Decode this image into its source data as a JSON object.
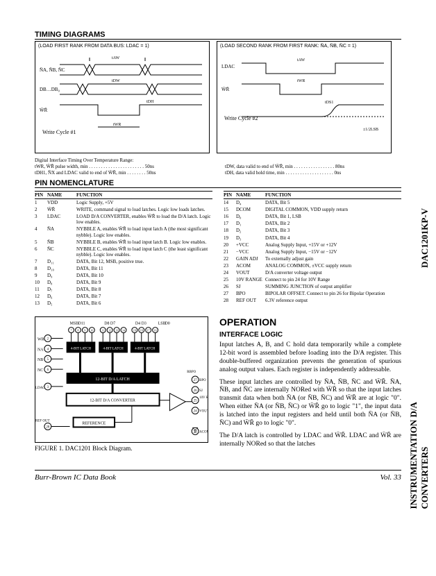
{
  "side_label_upper": "DAC1201KP-V",
  "side_label_lower": "INSTRUMENTATION D/A CONVERTERS",
  "timing": {
    "heading": "TIMING DIAGRAMS",
    "left_caption": "(LOAD FIRST RANK FROM DATA BUS: LDAC = 1)",
    "right_caption": "(LOAD SECOND RANK FROM FIRST RANK: N̄A, N̄B, N̄C = 1)",
    "left_cycle": "Write Cycle #1",
    "right_cycle": "Write Cycle #2",
    "zlsb": "±1/2LSB",
    "notes_title": "Digital Interface Timing Over Temperature Range:",
    "left_notes": [
      "tWR, W̄R̄ pulse width, min . . . . . . . . . . . . . . . . . . . . . . . 50ns",
      "tDH1, N̄X and LDAC valid to end of W̄R̄, min . . . . . . . . 50ns"
    ],
    "right_notes": [
      "tDW, data valid to end of W̄R̄, min . . . . . . . . . . . . . . . . . 80ns",
      "tDH, data valid hold time, min . . . . . . . . . . . . . . . . . . . . 0ns"
    ],
    "sig_left": [
      "N̄A, N̄B, N̄C",
      "DB…DB₀",
      "W̄R̄"
    ],
    "sig_right": [
      "LDAC",
      "W̄R̄"
    ]
  },
  "pin_heading": "PIN NOMENCLATURE",
  "pin_headers": [
    "PIN",
    "NAME",
    "FUNCTION"
  ],
  "pins_left": [
    {
      "n": "1",
      "name": "VDD",
      "fn": "Logic Supply, +5V"
    },
    {
      "n": "2",
      "name": "W̄R̄",
      "fn": "WRITE, command signal to load latches. Logic low loads latches."
    },
    {
      "n": "3",
      "name": "LDAC",
      "fn": "LOAD D/A CONVERTER, enables W̄R̄ to load the D/A latch. Logic low enables."
    },
    {
      "n": "4",
      "name": "N̄A",
      "fn": "NYBBLE A, enables W̄R̄ to load input latch A (the most significant nybble). Logic low enables."
    },
    {
      "n": "5",
      "name": "N̄B",
      "fn": "NYBBLE B, enables W̄R̄ to load input latch B. Logic low enables."
    },
    {
      "n": "6",
      "name": "N̄C",
      "fn": "NYBBLE C, enables W̄R̄ to load input latch C (the least significant nybble). Logic low enables."
    },
    {
      "n": "7",
      "name": "D₁₁",
      "fn": "DATA, Bit 12, MSB, positive true."
    },
    {
      "n": "8",
      "name": "D₁₀",
      "fn": "DATA, Bit 11"
    },
    {
      "n": "9",
      "name": "D₉",
      "fn": "DATA, Bit 10"
    },
    {
      "n": "10",
      "name": "D₈",
      "fn": "DATA, Bit 9"
    },
    {
      "n": "11",
      "name": "D₇",
      "fn": "DATA, Bit 8"
    },
    {
      "n": "12",
      "name": "D₆",
      "fn": "DATA, Bit 7"
    },
    {
      "n": "13",
      "name": "D₅",
      "fn": "DATA, Bit 6"
    }
  ],
  "pins_right": [
    {
      "n": "14",
      "name": "D₄",
      "fn": "DATA, Bit 5"
    },
    {
      "n": "15",
      "name": "DCOM",
      "fn": "DIGITAL COMMON, VDD supply return"
    },
    {
      "n": "16",
      "name": "D₀",
      "fn": "DATA, Bit 1, LSB"
    },
    {
      "n": "17",
      "name": "D₁",
      "fn": "DATA, Bit 2"
    },
    {
      "n": "18",
      "name": "D₂",
      "fn": "DATA, Bit 3"
    },
    {
      "n": "19",
      "name": "D₃",
      "fn": "DATA, Bit 4"
    },
    {
      "n": "20",
      "name": "+VCC",
      "fn": "Analog Supply Input, +15V or +12V"
    },
    {
      "n": "21",
      "name": "−VCC",
      "fn": "Analog Supply Input, −15V or −12V"
    },
    {
      "n": "22",
      "name": "GAIN ADJ",
      "fn": "To externally adjust gain"
    },
    {
      "n": "23",
      "name": "ACOM",
      "fn": "ANALOG COMMON, ±VCC supply return"
    },
    {
      "n": "24",
      "name": "VOUT",
      "fn": "D/A converter voltage output"
    },
    {
      "n": "25",
      "name": "10V RANGE",
      "fn": "Connect to pin 24 for 10V Range"
    },
    {
      "n": "26",
      "name": "SJ",
      "fn": "SUMMING JUNCTION of output amplifier"
    },
    {
      "n": "27",
      "name": "BPO",
      "fn": "BIPOLAR OFFSET. Connect to pin 26 for Bipolar Operation"
    },
    {
      "n": "28",
      "name": "REF OUT",
      "fn": "6.3V reference output"
    }
  ],
  "block": {
    "caption": "FIGURE 1. DAC1201 Block Diagram.",
    "labels_top": [
      "MSB",
      "D11",
      "D8 D7",
      "D4 D3",
      "LSB",
      "D0"
    ],
    "latch_a": "4-BIT LATCH",
    "latch_b": "4-BIT LATCH",
    "latch_c": "4-BIT LATCH",
    "reg12": "12-BIT D/A LATCH",
    "dac": "12-BIT D/A CONVERTER",
    "ref": "REFERENCE",
    "pins_left": [
      "WR",
      "NA",
      "NB",
      "NC",
      "LDAC",
      "REF OUT"
    ],
    "pins_right": [
      "RBPO",
      "BPO",
      "SJ",
      "10V RANGE",
      "VOUT",
      "ACOM"
    ],
    "sj": "SJ"
  },
  "operation": {
    "title": "OPERATION",
    "subtitle": "INTERFACE LOGIC",
    "p1": "Input latches A, B, and C hold data temporarily while a complete 12-bit word is assembled before loading into the D/A register. This double-buffered organization prevents the generation of spurious analog output values. Each register is independently addressable.",
    "p2": "These input latches are controlled by N̄A, N̄B, N̄C and W̄R̄. N̄A, N̄B, and N̄C are internally NORed with W̄R̄ so that the input latches transmit data when both N̄A (or N̄B, N̄C) and W̄R̄ are at logic \"0\". When either N̄A (or N̄B, N̄C) or W̄R̄ go to logic \"1\", the input data is latched into the input registers and held until both N̄A (or N̄B, N̄C) and W̄R̄ go to logic \"0\".",
    "p3": "The D/A latch is controlled by LDAC and W̄R̄. LDAC and W̄R̄ are internally NORed so that the latches"
  },
  "footer_left": "Burr-Brown IC Data Book",
  "footer_right": "Vol. 33"
}
